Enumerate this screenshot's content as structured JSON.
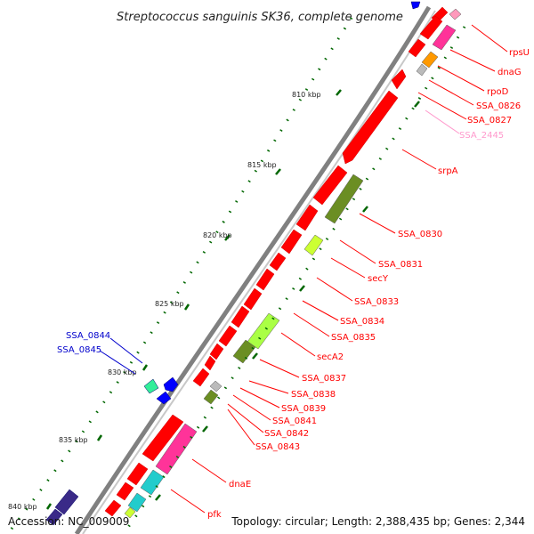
{
  "title": "Streptococcus sanguinis SK36, complete genome",
  "accession_text": "Accession: NC_009009",
  "summary_text": "Topology: circular; Length: 2,388,435 bp; Genes: 2,344",
  "colors": {
    "backbone": "#808080",
    "forward_gene": "#ff0000",
    "label_default": "#ff0000",
    "label_pseudo": "#ff99cc",
    "label_blue": "#0000cc",
    "tick_dots": "#006600"
  },
  "scale_ticks": [
    "810 kbp",
    "815 kbp",
    "820 kbp",
    "825 kbp",
    "830 kbp",
    "835 kbp",
    "840 kbp"
  ],
  "gene_labels": [
    {
      "name": "rpsU",
      "color": "#ff0000"
    },
    {
      "name": "dnaG",
      "color": "#ff0000"
    },
    {
      "name": "rpoD",
      "color": "#ff0000"
    },
    {
      "name": "SSA_0826",
      "color": "#ff0000"
    },
    {
      "name": "SSA_0827",
      "color": "#ff0000"
    },
    {
      "name": "SSA_2445",
      "color": "#ff99cc"
    },
    {
      "name": "srpA",
      "color": "#ff0000"
    },
    {
      "name": "SSA_0830",
      "color": "#ff0000"
    },
    {
      "name": "SSA_0831",
      "color": "#ff0000"
    },
    {
      "name": "secY",
      "color": "#ff0000"
    },
    {
      "name": "SSA_0833",
      "color": "#ff0000"
    },
    {
      "name": "SSA_0834",
      "color": "#ff0000"
    },
    {
      "name": "SSA_0835",
      "color": "#ff0000"
    },
    {
      "name": "secA2",
      "color": "#ff0000"
    },
    {
      "name": "SSA_0837",
      "color": "#ff0000"
    },
    {
      "name": "SSA_0838",
      "color": "#ff0000"
    },
    {
      "name": "SSA_0839",
      "color": "#ff0000"
    },
    {
      "name": "SSA_0841",
      "color": "#ff0000"
    },
    {
      "name": "SSA_0842",
      "color": "#ff0000"
    },
    {
      "name": "SSA_0843",
      "color": "#ff0000"
    },
    {
      "name": "dnaE",
      "color": "#ff0000"
    },
    {
      "name": "pfk",
      "color": "#ff0000"
    },
    {
      "name": "SSA_0844",
      "color": "#0000cc"
    },
    {
      "name": "SSA_0845",
      "color": "#0000cc"
    }
  ]
}
